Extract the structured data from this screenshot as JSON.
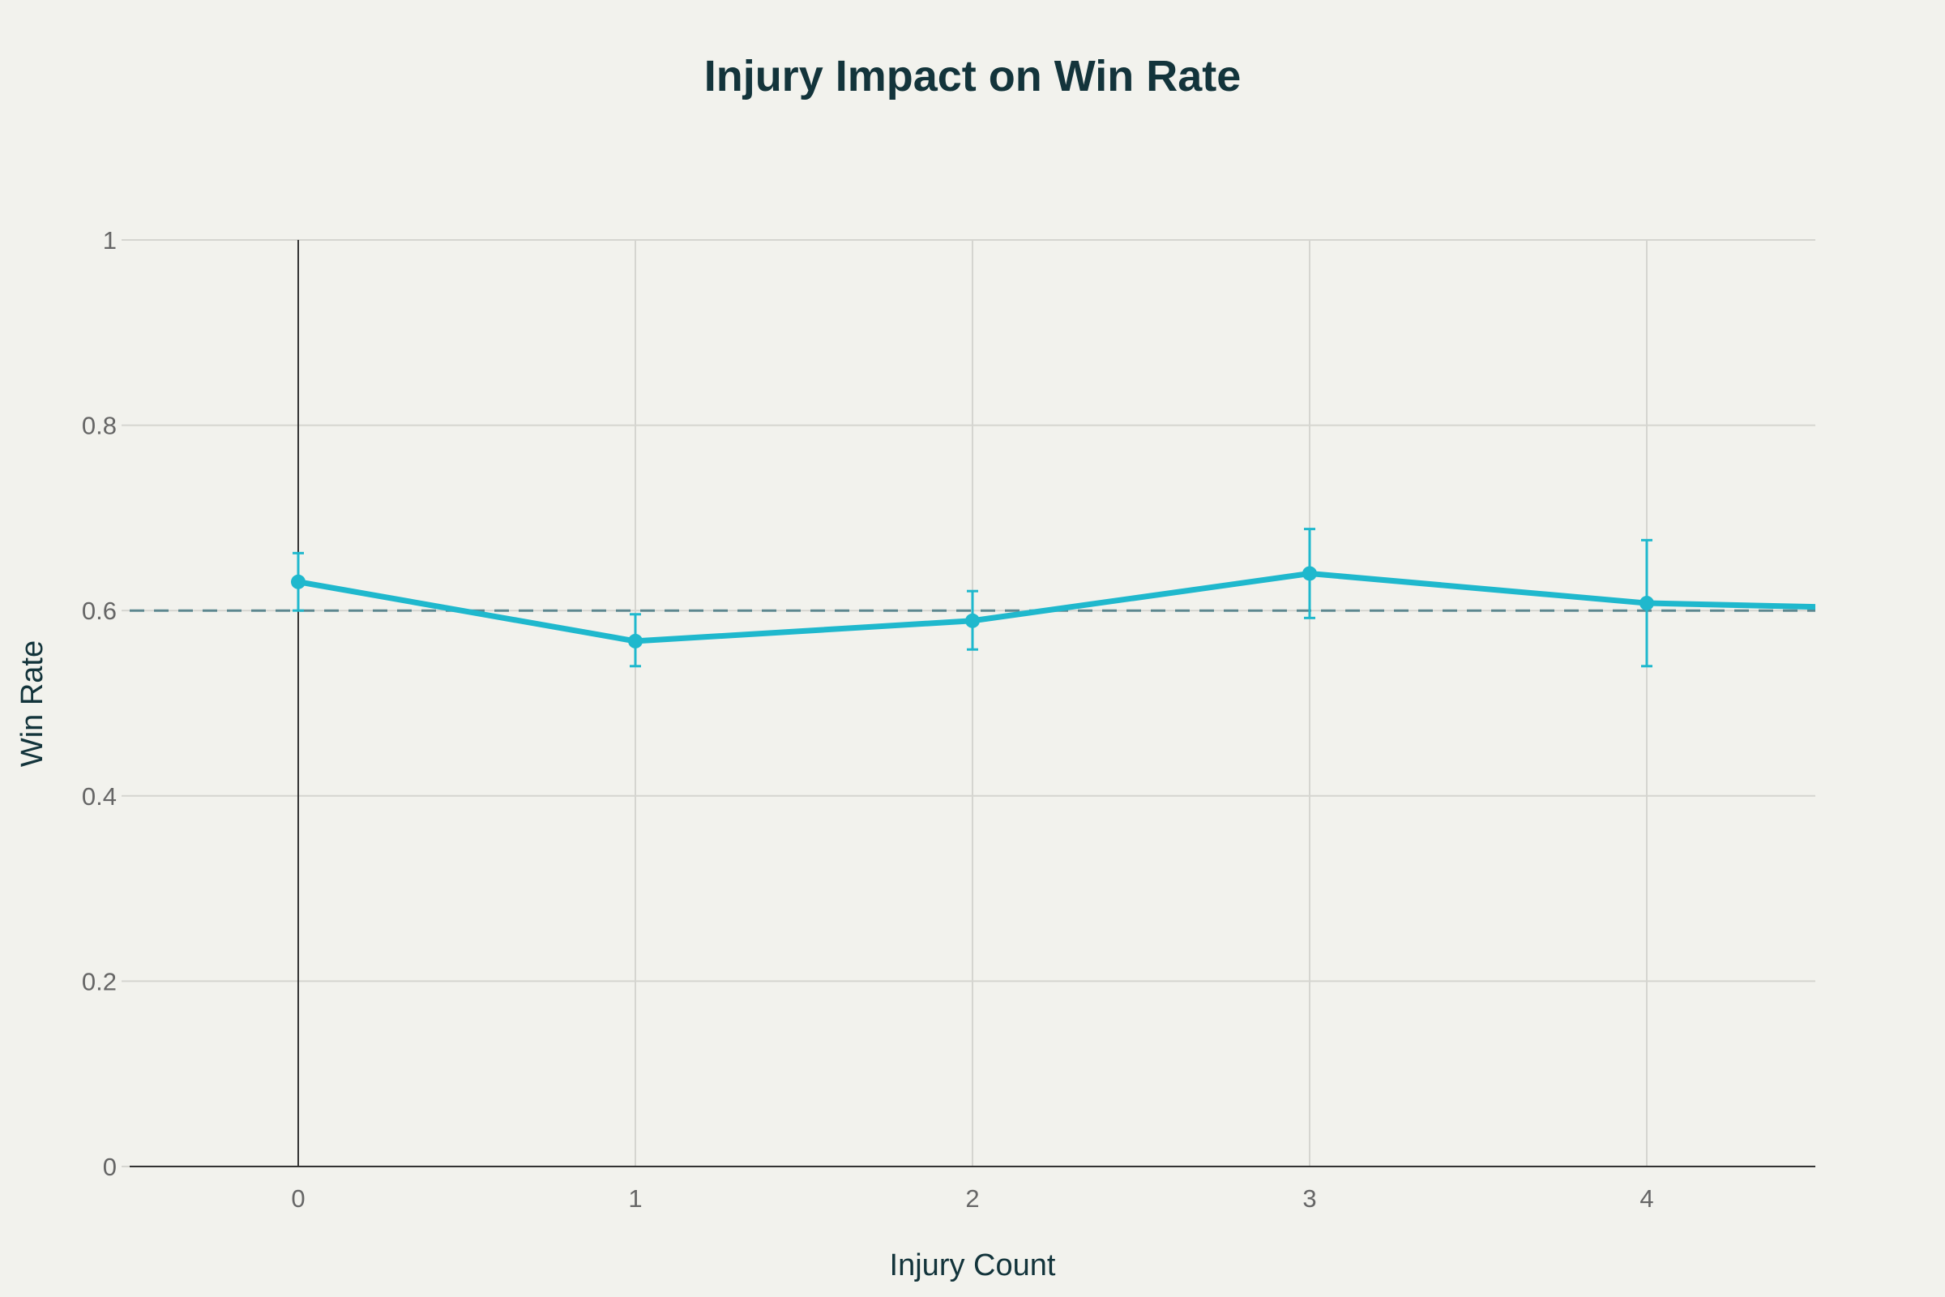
{
  "chart_data": {
    "type": "line",
    "title": "Injury Impact on Win Rate",
    "xlabel": "Injury Count",
    "ylabel": "Win Rate",
    "xlim": [
      -0.5,
      4.5
    ],
    "ylim": [
      0,
      1
    ],
    "x_ticks": [
      "0",
      "1",
      "2",
      "3",
      "4"
    ],
    "y_ticks": [
      "0",
      "0.2",
      "0.4",
      "0.6",
      "0.8",
      "1"
    ],
    "grid": true,
    "legend": "none",
    "series": [
      {
        "x": [
          0,
          1,
          2,
          3,
          4,
          5
        ],
        "y": [
          0.631,
          0.567,
          0.589,
          0.64,
          0.608,
          0.6
        ],
        "error_upper": [
          0.662,
          0.596,
          0.621,
          0.688,
          0.676,
          null
        ],
        "error_lower": [
          0.6,
          0.54,
          0.558,
          0.592,
          0.54,
          null
        ],
        "color": "#1fb8cd"
      }
    ],
    "reference_line": {
      "y": 0.6,
      "style": "dashed",
      "color": "#5d878f"
    }
  },
  "colors": {
    "background": "#f2f2ed",
    "title": "#13343b",
    "grid": "#d5d5d0",
    "axis": "#333333",
    "tick": "#666666"
  }
}
